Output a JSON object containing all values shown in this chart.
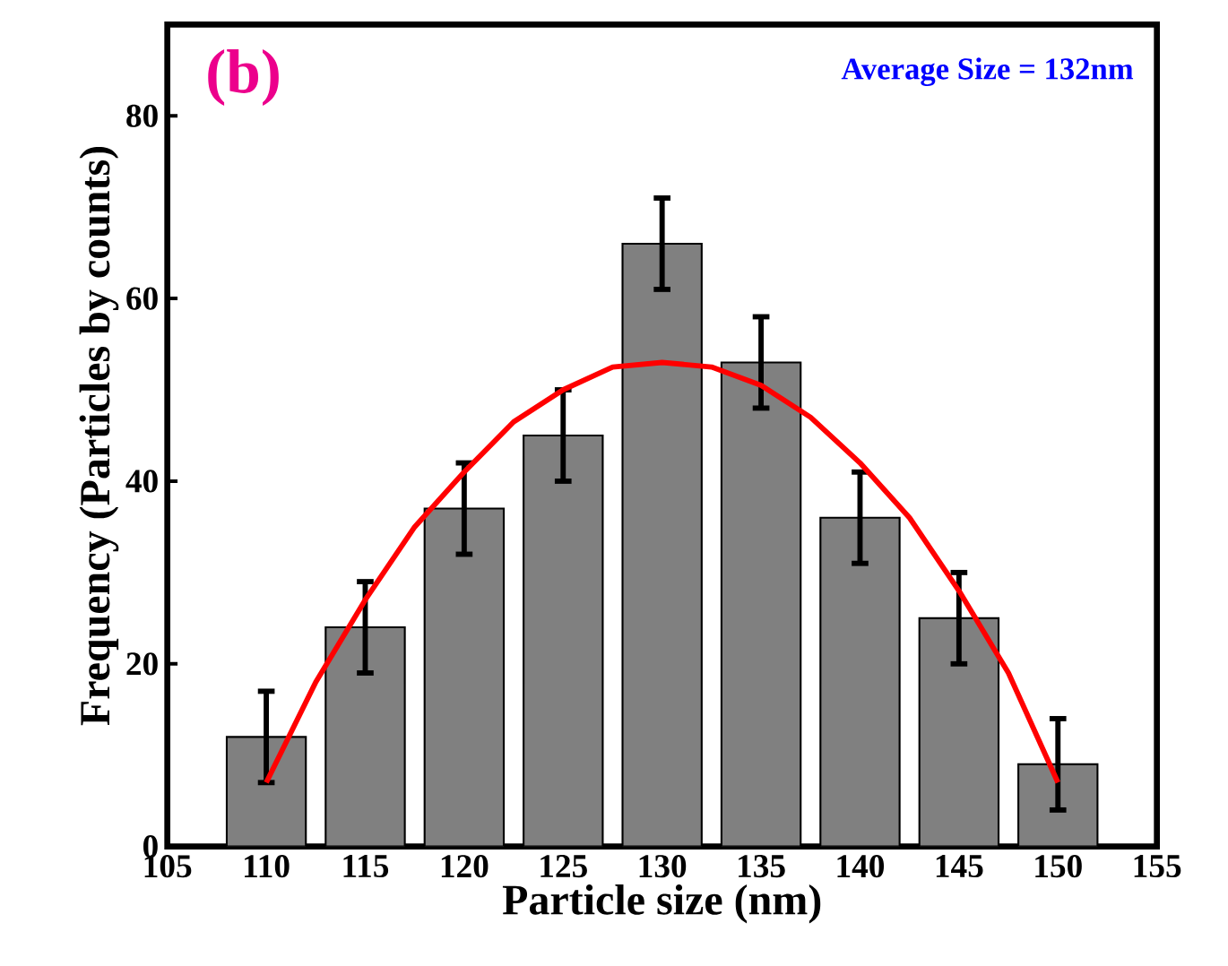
{
  "chart_data": {
    "type": "bar",
    "xlabel": "Particle size (nm)",
    "ylabel": "Frequency (Particles by counts)",
    "annotations": [
      "(b)",
      "Average Size = 132nm"
    ],
    "xlim": [
      105,
      155
    ],
    "xticks": [
      105,
      110,
      115,
      120,
      125,
      130,
      135,
      140,
      145,
      150,
      155
    ],
    "ylim": [
      0,
      90
    ],
    "yticks": [
      0,
      20,
      40,
      60,
      80
    ],
    "x": [
      110,
      115,
      120,
      125,
      130,
      135,
      140,
      145,
      150
    ],
    "series": [
      {
        "color": "#808080",
        "values": [
          12,
          24,
          37,
          45,
          66,
          53,
          36,
          25,
          9
        ],
        "errors": [
          5,
          5,
          5,
          5,
          5,
          5,
          5,
          5,
          5
        ]
      },
      {
        "type": "line",
        "color": "#ff0000",
        "x": [
          110,
          112.5,
          115,
          117.5,
          120,
          122.5,
          125,
          127.5,
          130,
          132.5,
          135,
          137.5,
          140,
          142.5,
          145,
          147.5,
          150
        ],
        "values": [
          7,
          18,
          27,
          35,
          41,
          46.5,
          50,
          52.5,
          53,
          52.5,
          50.5,
          47,
          42,
          36,
          28,
          19,
          7
        ]
      }
    ]
  }
}
